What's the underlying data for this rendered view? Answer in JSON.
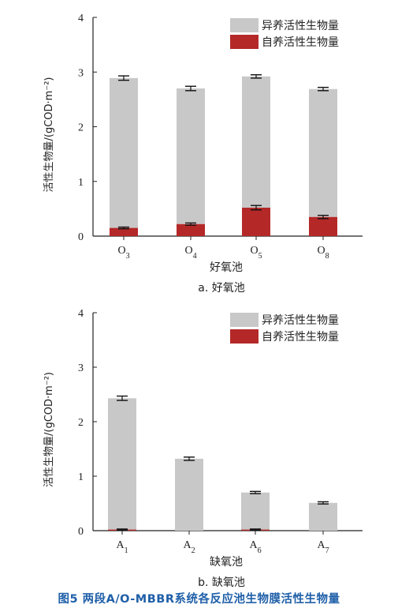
{
  "chart_data": [
    {
      "type": "bar",
      "stacked": true,
      "subplot_label": "a. 好氧池",
      "xlabel": "好氧池",
      "ylabel": "活性生物量/(gCOD·m⁻²)",
      "ylim": [
        0,
        4
      ],
      "yticks": [
        "0",
        "1",
        "2",
        "3",
        "4"
      ],
      "categories": [
        {
          "base": "O",
          "sub": "3"
        },
        {
          "base": "O",
          "sub": "4"
        },
        {
          "base": "O",
          "sub": "5"
        },
        {
          "base": "O",
          "sub": "8"
        }
      ],
      "totals": [
        2.89,
        2.7,
        2.92,
        2.69
      ],
      "total_errors": [
        0.04,
        0.04,
        0.03,
        0.03
      ],
      "series": [
        {
          "name": "异养活性生物量",
          "color": "#c8c8c8"
        },
        {
          "name": "自养活性生物量",
          "color": "#b42828",
          "values": [
            0.15,
            0.22,
            0.52,
            0.35
          ],
          "errors": [
            0.015,
            0.02,
            0.04,
            0.03
          ]
        }
      ],
      "legend": "top-right"
    },
    {
      "type": "bar",
      "stacked": true,
      "subplot_label": "b. 缺氧池",
      "xlabel": "缺氧池",
      "ylabel": "活性生物量/(gCOD·m⁻²)",
      "ylim": [
        0,
        4
      ],
      "yticks": [
        "0",
        "1",
        "2",
        "3",
        "4"
      ],
      "categories": [
        {
          "base": "A",
          "sub": "1"
        },
        {
          "base": "A",
          "sub": "2"
        },
        {
          "base": "A",
          "sub": "6"
        },
        {
          "base": "A",
          "sub": "7"
        }
      ],
      "totals": [
        2.43,
        1.32,
        0.7,
        0.51
      ],
      "total_errors": [
        0.04,
        0.03,
        0.02,
        0.02
      ],
      "series": [
        {
          "name": "异养活性生物量",
          "color": "#c8c8c8"
        },
        {
          "name": "自养活性生物量",
          "color": "#b42828",
          "values": [
            0.02,
            0.0,
            0.02,
            0.0
          ],
          "errors": [
            0.01,
            0.0,
            0.01,
            0.0
          ]
        }
      ],
      "legend": "top-right"
    }
  ],
  "caption": "图5   两段A/O-MBBR系统各反应池生物膜活性生物量"
}
